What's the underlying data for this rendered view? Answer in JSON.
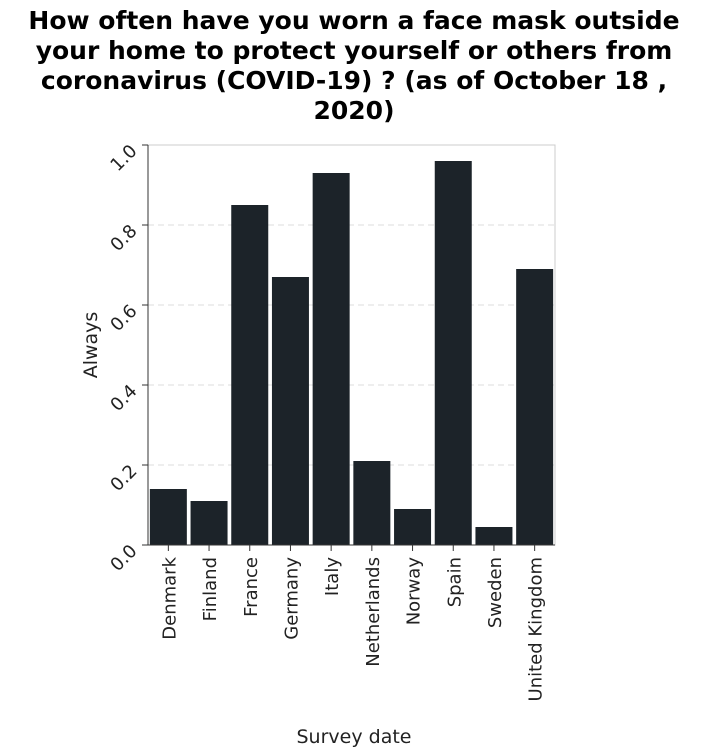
{
  "chart_data": {
    "type": "bar",
    "title": "How often have you worn a face mask outside your home to protect yourself or others from coronavirus (COVID-19) ? (as of October 18 , 2020)",
    "xlabel": "Survey date",
    "ylabel": "Always",
    "categories": [
      "Denmark",
      "Finland",
      "France",
      "Germany",
      "Italy",
      "Netherlands",
      "Norway",
      "Spain",
      "Sweden",
      "United Kingdom"
    ],
    "values": [
      0.14,
      0.11,
      0.85,
      0.67,
      0.93,
      0.21,
      0.09,
      0.96,
      0.045,
      0.69
    ],
    "ylim": [
      0,
      1.0
    ],
    "yticks": [
      "0.0",
      "0.2",
      "0.4",
      "0.6",
      "0.8",
      "1.0"
    ],
    "grid": true,
    "bar_color": "#1c2329",
    "grid_color": "#dddddd"
  }
}
